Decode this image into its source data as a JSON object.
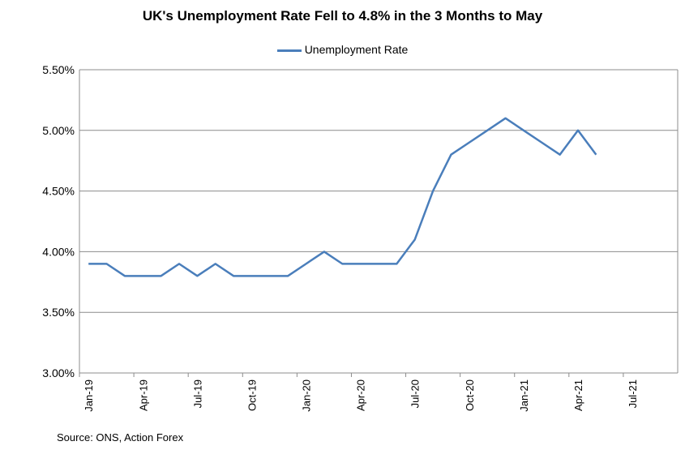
{
  "chart_data": {
    "type": "line",
    "title": "UK's Unemployment Rate Fell to 4.8% in the 3 Months to May",
    "legend": {
      "placement": "top-center"
    },
    "ylim": [
      3.0,
      5.5
    ],
    "y_ticks": [
      "3.00%",
      "3.50%",
      "4.00%",
      "4.50%",
      "5.00%",
      "5.50%"
    ],
    "x_ticks": [
      "Jan-19",
      "Apr-19",
      "Jul-19",
      "Oct-19",
      "Jan-20",
      "Apr-20",
      "Jul-20",
      "Oct-20",
      "Jan-21",
      "Apr-21",
      "Jul-21"
    ],
    "x": [
      "Jan-19",
      "Feb-19",
      "Mar-19",
      "Apr-19",
      "May-19",
      "Jun-19",
      "Jul-19",
      "Aug-19",
      "Sep-19",
      "Oct-19",
      "Nov-19",
      "Dec-19",
      "Jan-20",
      "Feb-20",
      "Mar-20",
      "Apr-20",
      "May-20",
      "Jun-20",
      "Jul-20",
      "Aug-20",
      "Sep-20",
      "Oct-20",
      "Nov-20",
      "Dec-20",
      "Jan-21",
      "Feb-21",
      "Mar-21",
      "Apr-21",
      "May-21"
    ],
    "series": [
      {
        "name": "Unemployment Rate",
        "color": "#4a7ebb",
        "values": [
          3.9,
          3.9,
          3.8,
          3.8,
          3.8,
          3.9,
          3.8,
          3.9,
          3.8,
          3.8,
          3.8,
          3.8,
          3.9,
          4.0,
          3.9,
          3.9,
          3.9,
          3.9,
          4.1,
          4.5,
          4.8,
          4.9,
          5.0,
          5.1,
          5.0,
          4.9,
          4.8,
          5.0,
          4.8
        ]
      }
    ],
    "grid": true
  },
  "source": "Source: ONS, Action Forex"
}
